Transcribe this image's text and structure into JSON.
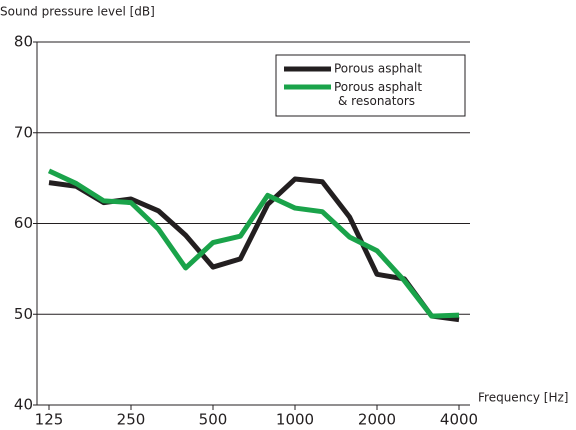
{
  "chart_data": {
    "type": "line",
    "y_label": "Sound pressure level [dB]",
    "x_label": "Frequency [Hz]",
    "categories": [
      "125",
      null,
      null,
      "250",
      null,
      null,
      "500",
      null,
      null,
      "1000",
      null,
      null,
      "2000",
      null,
      null,
      "4000"
    ],
    "series": [
      {
        "name": "Porous asphalt",
        "color": "#231f20",
        "values": [
          64.5,
          64.1,
          62.3,
          62.7,
          61.4,
          58.7,
          55.2,
          56.1,
          62.1,
          64.9,
          64.6,
          60.7,
          54.4,
          53.9,
          49.8,
          49.4
        ]
      },
      {
        "name": "Porous asphalt\n& resonators",
        "color": "#1aa34a",
        "values": [
          65.8,
          64.4,
          62.5,
          62.3,
          59.4,
          55.1,
          57.9,
          58.6,
          63.1,
          61.7,
          61.3,
          58.5,
          57.0,
          53.7,
          49.8,
          49.9
        ]
      }
    ],
    "ylim": [
      40,
      80
    ],
    "yticks": [
      40,
      50,
      60,
      70,
      80
    ],
    "grid": true,
    "legend": "top right"
  }
}
